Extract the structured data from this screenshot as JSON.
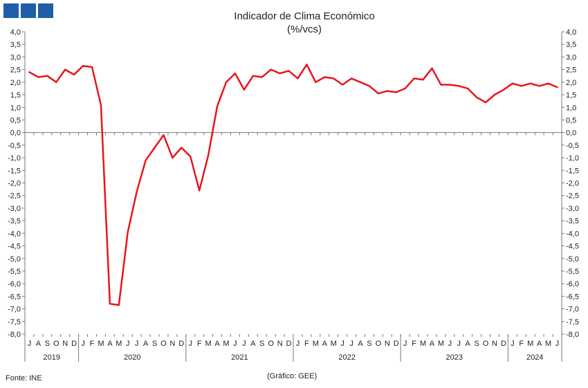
{
  "chart_data": {
    "type": "line",
    "title": "Indicador de Clima Económico",
    "subtitle": "(%/vcs)",
    "xlabel": "",
    "ylabel": "",
    "ylim": [
      -8.0,
      4.0
    ],
    "ytick_step": 0.5,
    "grid": false,
    "legend": "none",
    "line_color": "#e8141c",
    "months": [
      "J",
      "A",
      "S",
      "O",
      "N",
      "D",
      "J",
      "F",
      "M",
      "A",
      "M",
      "J",
      "J",
      "A",
      "S",
      "O",
      "N",
      "D",
      "J",
      "F",
      "M",
      "A",
      "M",
      "J",
      "J",
      "A",
      "S",
      "O",
      "N",
      "D",
      "J",
      "F",
      "M",
      "A",
      "M",
      "J",
      "J",
      "A",
      "S",
      "O",
      "N",
      "D",
      "J",
      "F",
      "M",
      "A",
      "M",
      "J",
      "J",
      "A",
      "S",
      "O",
      "N",
      "D",
      "J",
      "F",
      "M",
      "A",
      "M",
      "J"
    ],
    "years": [
      {
        "label": "2019",
        "start": 0,
        "count": 6
      },
      {
        "label": "2020",
        "start": 6,
        "count": 12
      },
      {
        "label": "2021",
        "start": 18,
        "count": 12
      },
      {
        "label": "2022",
        "start": 30,
        "count": 12
      },
      {
        "label": "2023",
        "start": 42,
        "count": 12
      },
      {
        "label": "2024",
        "start": 54,
        "count": 6
      }
    ],
    "series": [
      {
        "values": [
          2.4,
          2.2,
          2.25,
          2.0,
          2.5,
          2.3,
          2.65,
          2.6,
          1.1,
          -6.8,
          -6.85,
          -3.95,
          -2.35,
          -1.1,
          -0.6,
          -0.1,
          -1.0,
          -0.6,
          -0.95,
          -2.3,
          -0.9,
          1.05,
          2.0,
          2.35,
          1.7,
          2.25,
          2.2,
          2.5,
          2.35,
          2.45,
          2.15,
          2.7,
          2.0,
          2.2,
          2.15,
          1.9,
          2.15,
          2.0,
          1.85,
          1.55,
          1.65,
          1.6,
          1.75,
          2.15,
          2.1,
          2.55,
          1.9,
          1.9,
          1.85,
          1.75,
          1.4,
          1.2,
          1.5,
          1.7,
          1.95,
          1.85,
          1.95,
          1.85,
          1.95,
          1.8
        ]
      }
    ]
  },
  "labels": {
    "source": "Fonte: INE",
    "credit": "(Gráfico: GEE)"
  }
}
